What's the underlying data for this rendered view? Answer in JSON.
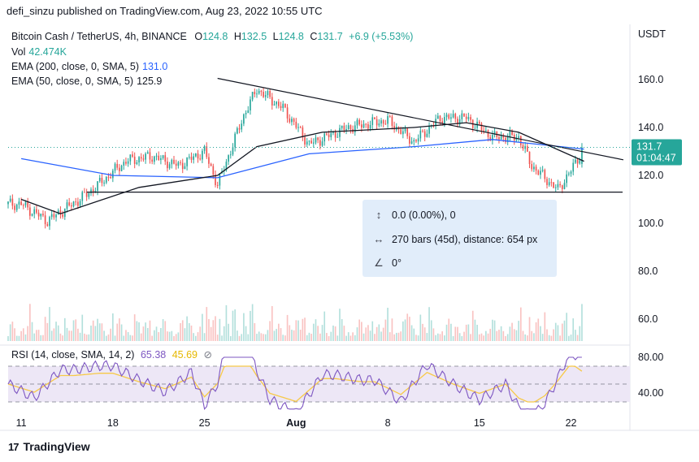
{
  "header": {
    "published": "defi_sinzu published on TradingView.com, Aug 23, 2022 10:55 UTC"
  },
  "legend": {
    "symbol": "Bitcoin Cash / TetherUS, 4h, BINANCE",
    "open_label": "O",
    "open": "124.8",
    "high_label": "H",
    "high": "132.5",
    "low_label": "L",
    "low": "124.8",
    "close_label": "C",
    "close": "131.7",
    "change": "+6.9 (+5.53%)",
    "vol_label": "Vol",
    "vol": "42.474K",
    "ema200_label": "EMA (200, close, 0, SMA, 5)",
    "ema200": "131.0",
    "ema50_label": "EMA (50, close, 0, SMA, 5)",
    "ema50": "125.9",
    "rsi_label": "RSI (14, close, SMA, 14, 2)",
    "rsi": "65.38",
    "rsi_ma": "45.69"
  },
  "axis": {
    "currency": "USDT",
    "price_ticks": [
      "160.0",
      "140.0",
      "120.0",
      "100.0",
      "80.0",
      "60.0"
    ],
    "rsi_ticks": [
      "80.00",
      "40.00"
    ],
    "time_ticks": [
      "11",
      "18",
      "25",
      "Aug",
      "8",
      "15",
      "22"
    ],
    "price_tag": "131.7",
    "countdown": "01:04:47"
  },
  "tooltip": {
    "change": "0.0 (0.00%), 0",
    "bars": "270 bars (45d), distance: 654 px",
    "angle": "0°"
  },
  "footer": {
    "brand": "TradingView",
    "logo_text": "17"
  },
  "colors": {
    "up": "#26a69a",
    "down": "#ef5350",
    "ema200": "#2962ff",
    "ema50": "#131722",
    "rsi": "#7e57c2",
    "rsi_ma": "#f7c948",
    "rsi_band": "#ede7f6"
  },
  "chart_data": {
    "type": "candlestick",
    "title": "Bitcoin Cash / TetherUS, 4h, BINANCE",
    "x_ticks": [
      "11",
      "18",
      "25",
      "Aug",
      "8",
      "15",
      "22"
    ],
    "y_ticks": [
      160,
      140,
      120,
      100,
      80,
      60
    ],
    "ohlc_keypoints": [
      {
        "date": "2022-07-11",
        "close": 108
      },
      {
        "date": "2022-07-13",
        "close": 101
      },
      {
        "date": "2022-07-16",
        "close": 112
      },
      {
        "date": "2022-07-19",
        "close": 126
      },
      {
        "date": "2022-07-21",
        "close": 128
      },
      {
        "date": "2022-07-23",
        "close": 124
      },
      {
        "date": "2022-07-25",
        "close": 130
      },
      {
        "date": "2022-07-26",
        "close": 116
      },
      {
        "date": "2022-07-28",
        "close": 145
      },
      {
        "date": "2022-07-29",
        "close": 156
      },
      {
        "date": "2022-07-31",
        "close": 148
      },
      {
        "date": "2022-08-02",
        "close": 133
      },
      {
        "date": "2022-08-05",
        "close": 140
      },
      {
        "date": "2022-08-08",
        "close": 143
      },
      {
        "date": "2022-08-10",
        "close": 134
      },
      {
        "date": "2022-08-12",
        "close": 144
      },
      {
        "date": "2022-08-14",
        "close": 144
      },
      {
        "date": "2022-08-16",
        "close": 136
      },
      {
        "date": "2022-08-18",
        "close": 136
      },
      {
        "date": "2022-08-19",
        "close": 124
      },
      {
        "date": "2022-08-21",
        "close": 114
      },
      {
        "date": "2022-08-22",
        "close": 122
      },
      {
        "date": "2022-08-23",
        "close": 131.7
      }
    ],
    "ema200": [
      {
        "date": "2022-07-11",
        "value": 127
      },
      {
        "date": "2022-07-18",
        "value": 120
      },
      {
        "date": "2022-07-26",
        "value": 119
      },
      {
        "date": "2022-08-02",
        "value": 129
      },
      {
        "date": "2022-08-10",
        "value": 132
      },
      {
        "date": "2022-08-16",
        "value": 135
      },
      {
        "date": "2022-08-23",
        "value": 131.0
      }
    ],
    "ema50": [
      {
        "date": "2022-07-11",
        "value": 110
      },
      {
        "date": "2022-07-14",
        "value": 104
      },
      {
        "date": "2022-07-20",
        "value": 115
      },
      {
        "date": "2022-07-26",
        "value": 120
      },
      {
        "date": "2022-07-29",
        "value": 132
      },
      {
        "date": "2022-08-03",
        "value": 138
      },
      {
        "date": "2022-08-10",
        "value": 140
      },
      {
        "date": "2022-08-14",
        "value": 142
      },
      {
        "date": "2022-08-18",
        "value": 138
      },
      {
        "date": "2022-08-23",
        "value": 125.9
      }
    ],
    "trendline_down": [
      {
        "date": "2022-07-26",
        "value": 160.5
      },
      {
        "date": "2022-08-26",
        "value": 126.5
      }
    ],
    "support_line": {
      "value": 113
    },
    "rsi_levels": [
      70,
      50,
      30
    ],
    "rsi_last": 65.38,
    "rsi_ma_last": 45.69
  }
}
